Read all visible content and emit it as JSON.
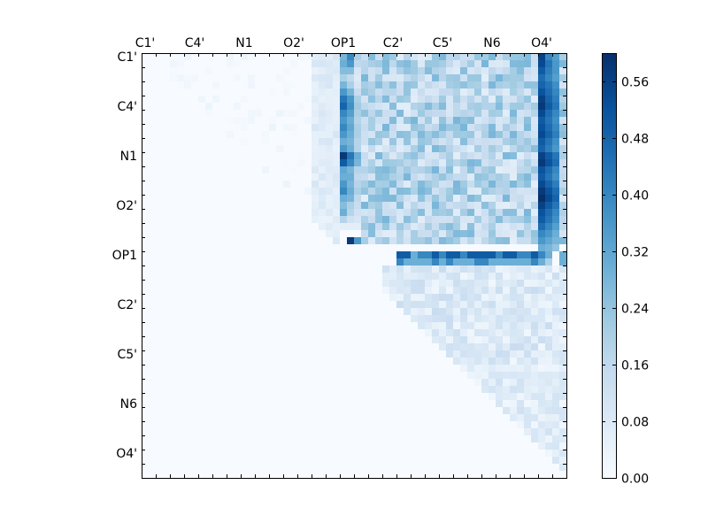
{
  "chart_data": {
    "type": "heatmap",
    "title": "",
    "xlabel": "",
    "ylabel": "",
    "grid": false,
    "n": 60,
    "x_tick_labels": [
      "C1'",
      "C4'",
      "N1",
      "O2'",
      "OP1",
      "C2'",
      "C5'",
      "N6",
      "O4'"
    ],
    "y_tick_labels": [
      "C1'",
      "C4'",
      "N1",
      "O2'",
      "OP1",
      "C2'",
      "C5'",
      "N6",
      "O4'"
    ],
    "tick_label_positions": [
      0,
      7,
      14,
      21,
      28,
      35,
      42,
      49,
      56
    ],
    "colormap": "Blues",
    "colormap_stops": [
      "#f7fbff",
      "#deebf7",
      "#c6dbef",
      "#9ecae1",
      "#6baed6",
      "#4292c6",
      "#2171b5",
      "#08519c",
      "#08306b"
    ],
    "vmin": 0.0,
    "vmax": 0.6,
    "colorbar_ticks": [
      "0.00",
      "0.08",
      "0.16",
      "0.24",
      "0.32",
      "0.40",
      "0.48",
      "0.56"
    ],
    "colorbar_tick_values": [
      0.0,
      0.08,
      0.16,
      0.24,
      0.32,
      0.4,
      0.48,
      0.56
    ],
    "strong_columns": [
      {
        "col": 28,
        "values": [
          0.28,
          0.3,
          0.26,
          0.2,
          0.28,
          0.36,
          0.44,
          0.48,
          0.4,
          0.36,
          0.4,
          0.36,
          0.3,
          0.36,
          0.58,
          0.5,
          0.32,
          0.3,
          0.36,
          0.4,
          0.3,
          0.26,
          0.3,
          0.18,
          0.06,
          0.0,
          0.0,
          0.0
        ]
      },
      {
        "col": 29,
        "values": [
          0.4,
          0.36,
          0.26,
          0.16,
          0.2,
          0.28,
          0.36,
          0.38,
          0.34,
          0.3,
          0.32,
          0.3,
          0.28,
          0.3,
          0.44,
          0.4,
          0.28,
          0.3,
          0.28,
          0.3,
          0.28,
          0.2,
          0.18,
          0.12,
          0.06,
          0.0,
          0.58
        ]
      },
      {
        "col": 30,
        "values": [
          0.2,
          0.16,
          0.1,
          0.08,
          0.1,
          0.14,
          0.2,
          0.22,
          0.2,
          0.18,
          0.2,
          0.2,
          0.18,
          0.18,
          0.3,
          0.28,
          0.18,
          0.16,
          0.18,
          0.2,
          0.16,
          0.14,
          0.12,
          0.1,
          0.06,
          0.0,
          0.36
        ]
      },
      {
        "col": 56,
        "values": [
          0.56,
          0.54,
          0.5,
          0.46,
          0.48,
          0.52,
          0.56,
          0.58,
          0.54,
          0.5,
          0.52,
          0.54,
          0.5,
          0.48,
          0.56,
          0.58,
          0.52,
          0.5,
          0.54,
          0.58,
          0.6,
          0.56,
          0.52,
          0.5,
          0.46,
          0.4,
          0.36,
          0.3,
          0.32
        ]
      },
      {
        "col": 57,
        "values": [
          0.4,
          0.44,
          0.42,
          0.4,
          0.44,
          0.46,
          0.48,
          0.5,
          0.46,
          0.44,
          0.46,
          0.48,
          0.44,
          0.42,
          0.5,
          0.52,
          0.46,
          0.44,
          0.48,
          0.52,
          0.54,
          0.5,
          0.46,
          0.44,
          0.4,
          0.36,
          0.32,
          0.28,
          0.3
        ]
      },
      {
        "col": 58,
        "values": [
          0.34,
          0.36,
          0.36,
          0.34,
          0.38,
          0.4,
          0.42,
          0.44,
          0.4,
          0.38,
          0.4,
          0.42,
          0.38,
          0.36,
          0.44,
          0.46,
          0.4,
          0.38,
          0.42,
          0.46,
          0.48,
          0.44,
          0.4,
          0.38,
          0.34,
          0.3,
          0.28,
          0.24,
          0.26
        ]
      }
    ],
    "strong_rows": [
      {
        "row": 28,
        "start": 36,
        "values": [
          0.5,
          0.5,
          0.3,
          0.4,
          0.4,
          0.5,
          0.4,
          0.5,
          0.5,
          0.4,
          0.5,
          0.5,
          0.5,
          0.5,
          0.4,
          0.5,
          0.5,
          0.4,
          0.4,
          0.5,
          0.4,
          0.3,
          0.0,
          0.3,
          0.16,
          0.16,
          0.16
        ]
      },
      {
        "row": 29,
        "start": 36,
        "values": [
          0.4,
          0.3,
          0.3,
          0.3,
          0.3,
          0.4,
          0.3,
          0.4,
          0.3,
          0.3,
          0.3,
          0.4,
          0.4,
          0.3,
          0.3,
          0.3,
          0.3,
          0.3,
          0.3,
          0.4,
          0.3,
          0.2,
          0.0,
          0.3,
          0.16,
          0.16,
          0.16
        ]
      }
    ]
  }
}
